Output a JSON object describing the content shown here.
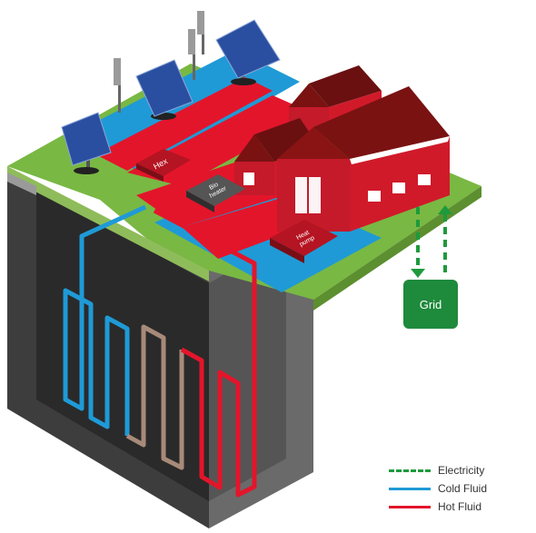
{
  "labels": {
    "hex": "Hex",
    "bio_heater": "Bio\nheater",
    "heat_pump": "Heat\npump",
    "grid": "Grid"
  },
  "legend": [
    {
      "id": "electricity",
      "label": "Electricity",
      "color": "#1e9a3c",
      "style": "dashed"
    },
    {
      "id": "cold",
      "label": "Cold Fluid",
      "color": "#1f9ad6",
      "style": "solid"
    },
    {
      "id": "hot",
      "label": "Hot Fluid",
      "color": "#e3152b",
      "style": "solid"
    }
  ],
  "colors": {
    "grass": "#79b843",
    "cold": "#1f9ad6",
    "hot": "#e3152b",
    "house_wall": "#d01a2a",
    "house_roof": "#7a1212",
    "grid_box": "#1e8a3c",
    "ground": "#4a4a4a"
  },
  "icons": [
    "solar-panel-icon",
    "wind-turbine-icon",
    "house-icon"
  ]
}
